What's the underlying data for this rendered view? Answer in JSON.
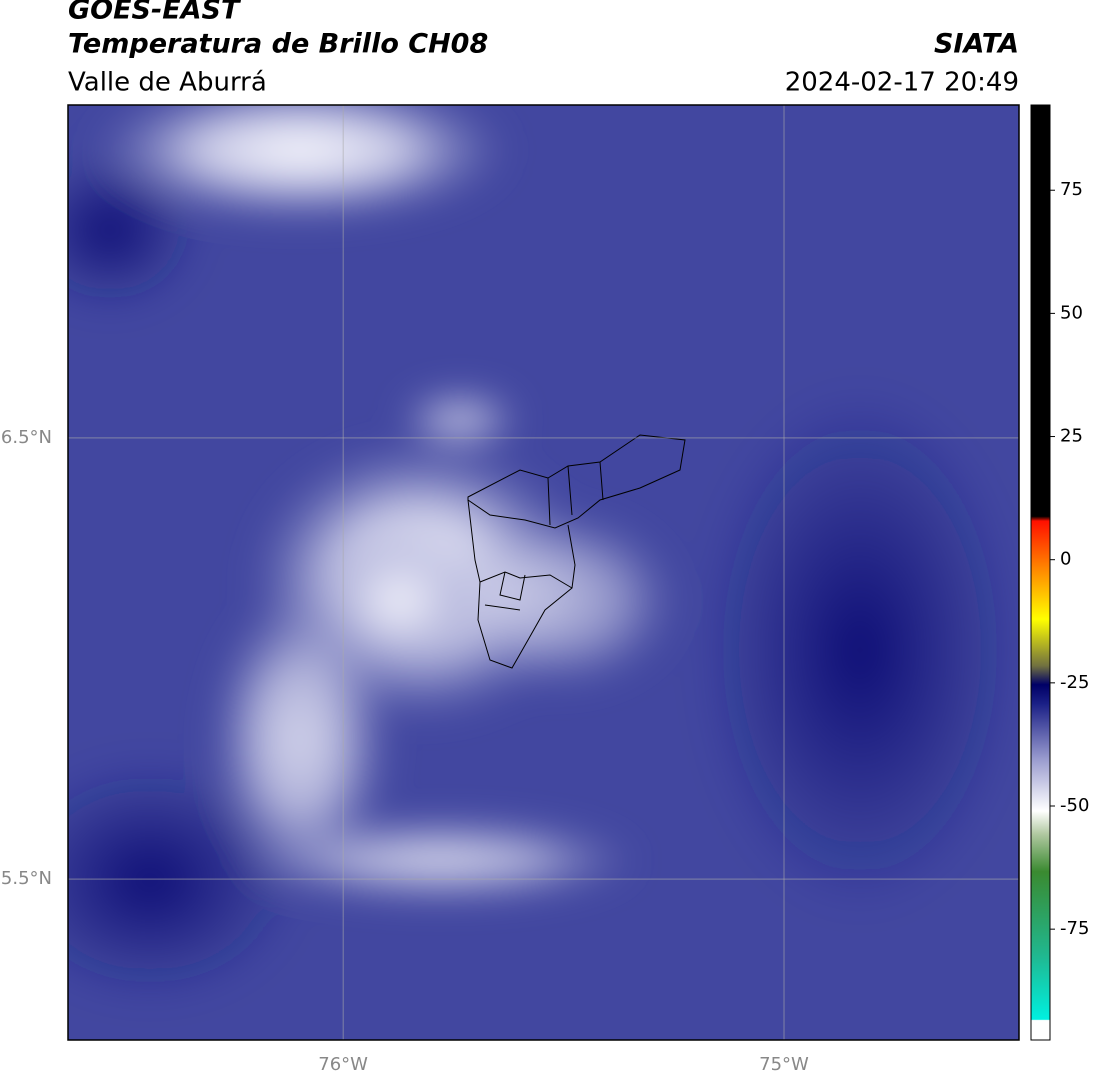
{
  "header": {
    "title": "GOES-EAST",
    "subtitle": "Temperatura de Brillo CH08",
    "region": "Valle de Aburrá",
    "source": "SIATA",
    "datetime": "2024-02-17 20:49"
  },
  "map": {
    "lon_range": [
      -76.624,
      -74.467
    ],
    "lat_range": [
      5.135,
      7.255
    ],
    "lon_ticks": [
      {
        "value": -76,
        "label": "76°W"
      },
      {
        "value": -75,
        "label": "75°W"
      }
    ],
    "lat_ticks": [
      {
        "value": 6.5,
        "label": "6.5°N"
      },
      {
        "value": 5.5,
        "label": "5.5°N"
      }
    ]
  },
  "colorbar": {
    "range": [
      -97.5,
      92.3
    ],
    "ticks": [
      75,
      50,
      25,
      0,
      -25,
      -50,
      -75
    ]
  }
}
